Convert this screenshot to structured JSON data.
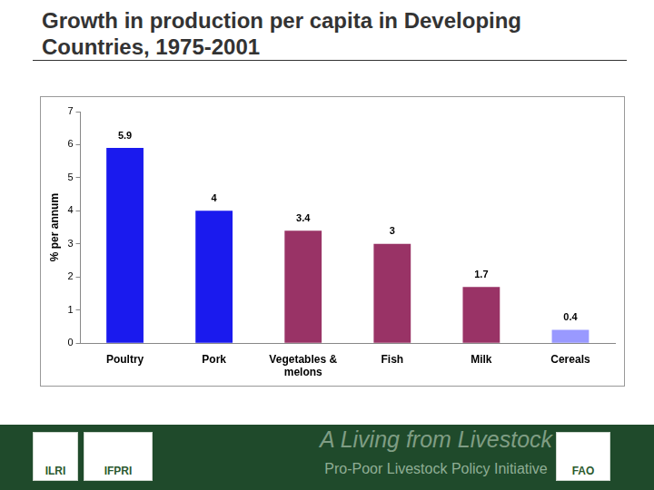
{
  "chart_data": {
    "type": "bar",
    "title": "Growth in production per capita in Developing Countries, 1975-2001",
    "y_label": "% per annum",
    "categories": [
      "Poultry",
      "Pork",
      "Vegetables & melons",
      "Fish",
      "Milk",
      "Cereals"
    ],
    "values": [
      5.9,
      4,
      3.4,
      3,
      1.7,
      0.4
    ],
    "colors": [
      "#1a1aee",
      "#1a1aee",
      "#993366",
      "#993366",
      "#993366",
      "#9999ff"
    ],
    "ylim": [
      0,
      7
    ],
    "yticks": [
      0,
      1,
      2,
      3,
      4,
      5,
      6,
      7
    ],
    "grid": false,
    "data_labels": true
  },
  "footer": {
    "tagline": "A Living from Livestock",
    "subtitle": "Pro-Poor Livestock Policy Initiative",
    "logos": [
      "ILRI",
      "IFPRI",
      "FAO"
    ]
  }
}
